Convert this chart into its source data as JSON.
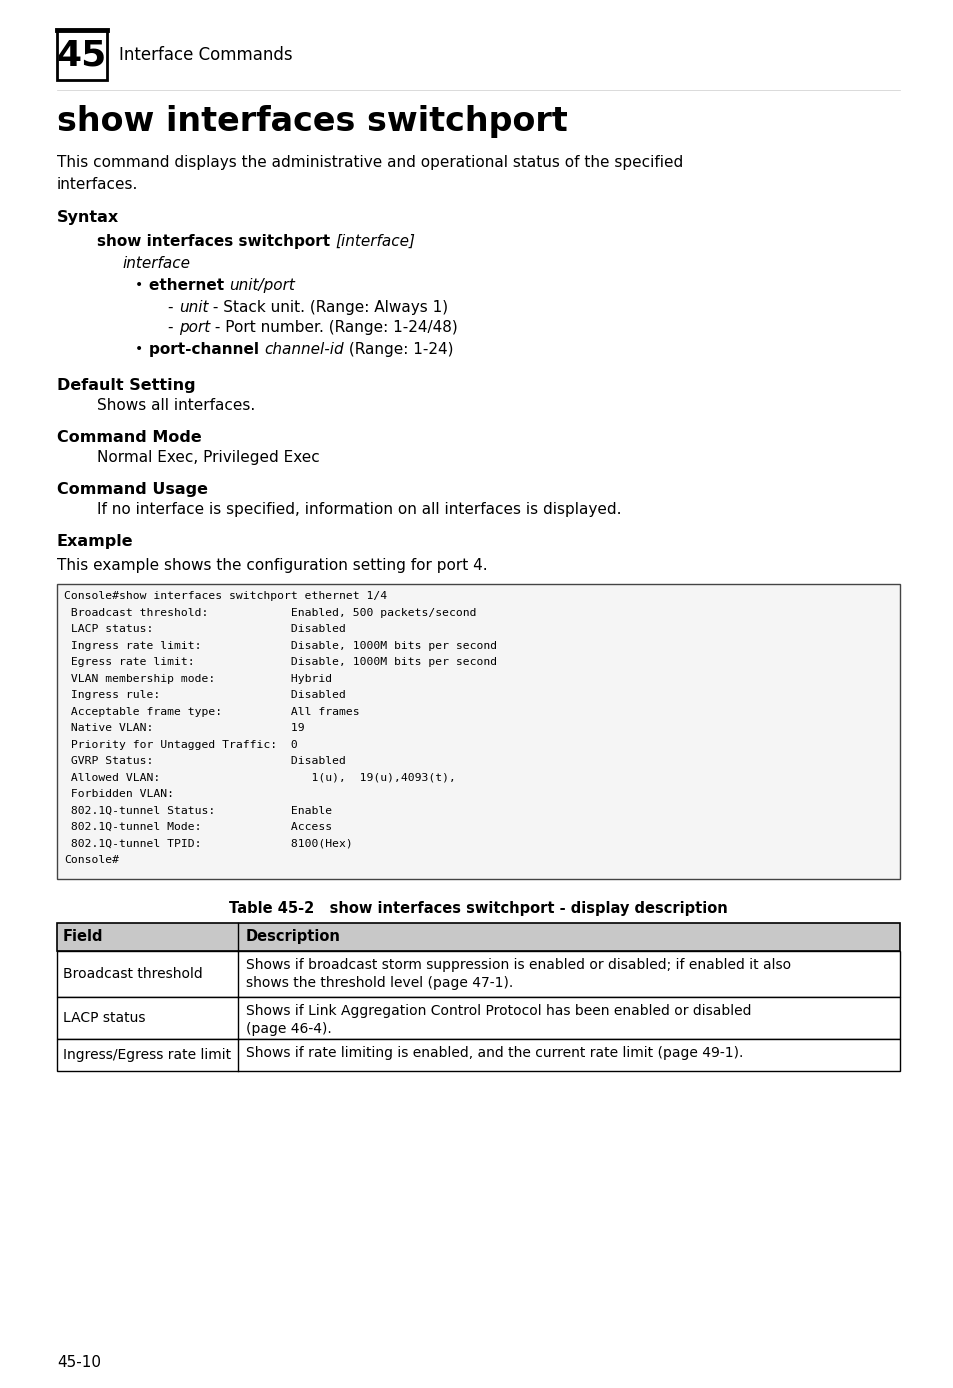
{
  "bg_color": "#ffffff",
  "text_color": "#000000",
  "page_number": "45-10",
  "chapter_number": "45",
  "chapter_title": "Interface Commands",
  "section_title": "show interfaces switchport",
  "description": "This command displays the administrative and operational status of the specified\ninterfaces.",
  "syntax_label": "Syntax",
  "syntax_command_bold": "show interfaces switchport ",
  "syntax_command_italic": "[interface]",
  "syntax_interface_italic": "interface",
  "bullet1_bold": "ethernet ",
  "bullet1_italic": "unit/port",
  "sub_bullet1_italic": "unit",
  "sub_bullet1_normal": " - Stack unit. (Range: Always 1)",
  "sub_bullet2_italic": "port",
  "sub_bullet2_normal": " - Port number. (Range: 1-24/48)",
  "bullet2_bold": "port-channel ",
  "bullet2_italic": "channel-id",
  "bullet2_normal": " (Range: 1-24)",
  "default_label": "Default Setting",
  "default_text": "Shows all interfaces.",
  "mode_label": "Command Mode",
  "mode_text": "Normal Exec, Privileged Exec",
  "usage_label": "Command Usage",
  "usage_text": "If no interface is specified, information on all interfaces is displayed.",
  "example_label": "Example",
  "example_intro": "This example shows the configuration setting for port 4.",
  "console_lines": [
    "Console#show interfaces switchport ethernet 1/4",
    " Broadcast threshold:            Enabled, 500 packets/second",
    " LACP status:                    Disabled",
    " Ingress rate limit:             Disable, 1000M bits per second",
    " Egress rate limit:              Disable, 1000M bits per second",
    " VLAN membership mode:           Hybrid",
    " Ingress rule:                   Disabled",
    " Acceptable frame type:          All frames",
    " Native VLAN:                    19",
    " Priority for Untagged Traffic:  0",
    " GVRP Status:                    Disabled",
    " Allowed VLAN:                      1(u),  19(u),4093(t),",
    " Forbidden VLAN:",
    " 802.1Q-tunnel Status:           Enable",
    " 802.1Q-tunnel Mode:             Access",
    " 802.1Q-tunnel TPID:             8100(Hex)",
    "Console#"
  ],
  "table_caption": "Table 45-2   show interfaces switchport - display description",
  "table_headers": [
    "Field",
    "Description"
  ],
  "table_rows": [
    [
      "Broadcast threshold",
      "Shows if broadcast storm suppression is enabled or disabled; if enabled it also\nshows the threshold level (page 47-1)."
    ],
    [
      "LACP status",
      "Shows if Link Aggregation Control Protocol has been enabled or disabled\n(page 46-4)."
    ],
    [
      "Ingress/Egress rate limit",
      "Shows if rate limiting is enabled, and the current rate limit (page 49-1)."
    ]
  ]
}
